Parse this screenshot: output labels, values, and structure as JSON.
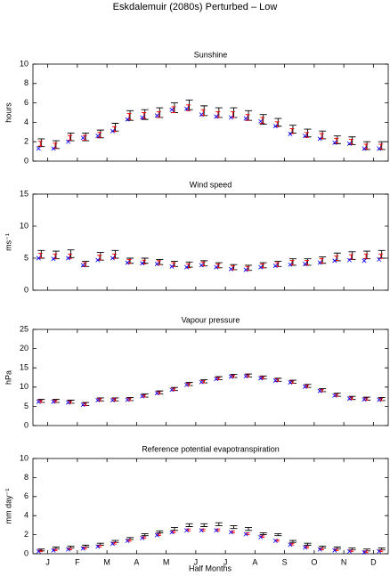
{
  "title": "Eskdalemuir (2080s) Perturbed – Low",
  "xlabel": "Half Months",
  "x": [
    1,
    2,
    3,
    4,
    5,
    6,
    7,
    8,
    9,
    10,
    11,
    12,
    13,
    14,
    15,
    16,
    17,
    18,
    19,
    20,
    21,
    22,
    23,
    24
  ],
  "xlim": [
    0.5,
    24.5
  ],
  "xticks": [
    {
      "value": 1.5,
      "label": "J"
    },
    {
      "value": 3.5,
      "label": "F"
    },
    {
      "value": 5.5,
      "label": "M"
    },
    {
      "value": 7.5,
      "label": "A"
    },
    {
      "value": 9.5,
      "label": "M"
    },
    {
      "value": 11.5,
      "label": "J"
    },
    {
      "value": 13.5,
      "label": "J"
    },
    {
      "value": 15.5,
      "label": "A"
    },
    {
      "value": 17.5,
      "label": "S"
    },
    {
      "value": 19.5,
      "label": "O"
    },
    {
      "value": 21.5,
      "label": "N"
    },
    {
      "value": 23.5,
      "label": "D"
    }
  ],
  "chart_data": [
    {
      "type": "errorbar",
      "title": "Sunshine",
      "ylabel": "hours",
      "ylim": [
        0,
        10
      ],
      "yticks": [
        0,
        2,
        4,
        6,
        8,
        10
      ],
      "series": [
        {
          "color": "#000000",
          "values": [
            1.9,
            1.7,
            2.5,
            2.5,
            2.8,
            3.5,
            4.7,
            4.8,
            5.0,
            5.5,
            5.8,
            5.2,
            5.0,
            5.0,
            4.7,
            4.3,
            4.0,
            3.3,
            2.9,
            2.7,
            2.2,
            2.1,
            1.6,
            1.6
          ],
          "errors": [
            0.4,
            0.4,
            0.4,
            0.4,
            0.4,
            0.4,
            0.5,
            0.5,
            0.5,
            0.5,
            0.5,
            0.5,
            0.5,
            0.5,
            0.5,
            0.5,
            0.4,
            0.4,
            0.4,
            0.4,
            0.4,
            0.4,
            0.4,
            0.4
          ]
        },
        {
          "color": "#ff0000",
          "values": [
            1.8,
            1.6,
            2.4,
            2.4,
            2.7,
            3.3,
            4.6,
            4.7,
            4.8,
            5.3,
            5.5,
            5.0,
            4.8,
            4.8,
            4.5,
            4.2,
            3.8,
            3.1,
            2.7,
            2.6,
            2.1,
            2.0,
            1.5,
            1.5
          ],
          "errors": [
            0.25,
            0.25,
            0.25,
            0.25,
            0.25,
            0.25,
            0.3,
            0.3,
            0.3,
            0.3,
            0.3,
            0.3,
            0.3,
            0.3,
            0.3,
            0.3,
            0.25,
            0.25,
            0.25,
            0.25,
            0.25,
            0.25,
            0.25,
            0.25
          ]
        },
        {
          "color": "#0000ff",
          "marker": "x",
          "values": [
            1.3,
            1.3,
            2.0,
            2.4,
            2.6,
            3.1,
            4.3,
            4.5,
            4.7,
            5.3,
            5.4,
            4.8,
            4.6,
            4.5,
            4.4,
            4.1,
            3.6,
            2.8,
            2.6,
            2.3,
            1.9,
            1.8,
            1.3,
            1.3
          ]
        }
      ]
    },
    {
      "type": "errorbar",
      "title": "Wind speed",
      "ylabel": "ms⁻¹",
      "ylim": [
        0,
        15
      ],
      "yticks": [
        0,
        5,
        10,
        15
      ],
      "series": [
        {
          "color": "#000000",
          "values": [
            5.6,
            5.5,
            5.7,
            4.1,
            5.3,
            5.6,
            4.6,
            4.6,
            4.4,
            4.1,
            4.0,
            4.2,
            3.9,
            3.6,
            3.5,
            3.9,
            4.1,
            4.4,
            4.4,
            4.7,
            5.2,
            5.4,
            5.5,
            5.6
          ],
          "errors": [
            0.6,
            0.6,
            0.6,
            0.4,
            0.6,
            0.6,
            0.4,
            0.4,
            0.4,
            0.4,
            0.4,
            0.4,
            0.4,
            0.4,
            0.4,
            0.4,
            0.4,
            0.5,
            0.5,
            0.5,
            0.6,
            0.6,
            0.6,
            0.6
          ]
        },
        {
          "color": "#ff0000",
          "values": [
            5.4,
            5.3,
            5.3,
            4.0,
            5.1,
            5.3,
            4.5,
            4.4,
            4.3,
            4.0,
            3.8,
            4.1,
            3.8,
            3.5,
            3.4,
            3.8,
            4.0,
            4.3,
            4.3,
            4.6,
            5.0,
            5.2,
            5.3,
            5.3
          ],
          "errors": [
            0.35,
            0.35,
            0.35,
            0.3,
            0.35,
            0.35,
            0.3,
            0.3,
            0.3,
            0.3,
            0.3,
            0.3,
            0.3,
            0.3,
            0.3,
            0.3,
            0.3,
            0.35,
            0.35,
            0.35,
            0.35,
            0.35,
            0.35,
            0.35
          ]
        },
        {
          "color": "#0000ff",
          "marker": "x",
          "values": [
            5.0,
            4.9,
            5.0,
            3.9,
            4.7,
            5.0,
            4.3,
            4.2,
            4.1,
            3.7,
            3.6,
            3.9,
            3.6,
            3.3,
            3.2,
            3.6,
            3.8,
            4.0,
            4.1,
            4.3,
            4.6,
            4.7,
            4.6,
            4.8
          ]
        }
      ]
    },
    {
      "type": "errorbar",
      "title": "Vapour pressure",
      "ylabel": "hPa",
      "ylim": [
        0,
        25
      ],
      "yticks": [
        0,
        5,
        10,
        15,
        20,
        25
      ],
      "series": [
        {
          "color": "#000000",
          "values": [
            6.4,
            6.4,
            6.2,
            5.6,
            6.8,
            6.8,
            6.9,
            7.8,
            8.6,
            9.5,
            10.8,
            11.5,
            12.3,
            12.9,
            13.0,
            12.5,
            11.9,
            11.4,
            10.3,
            9.2,
            8.0,
            7.2,
            7.0,
            6.9
          ],
          "errors": [
            0.4,
            0.4,
            0.4,
            0.4,
            0.4,
            0.4,
            0.4,
            0.4,
            0.4,
            0.4,
            0.4,
            0.4,
            0.4,
            0.4,
            0.4,
            0.4,
            0.4,
            0.4,
            0.4,
            0.4,
            0.4,
            0.4,
            0.4,
            0.4
          ]
        },
        {
          "color": "#ff0000",
          "values": [
            6.3,
            6.3,
            6.1,
            5.5,
            6.7,
            6.7,
            6.8,
            7.7,
            8.5,
            9.4,
            10.7,
            11.4,
            12.2,
            12.8,
            12.9,
            12.4,
            11.8,
            11.3,
            10.2,
            9.1,
            7.9,
            7.1,
            6.9,
            6.8
          ],
          "errors": [
            0.3,
            0.3,
            0.3,
            0.3,
            0.3,
            0.3,
            0.3,
            0.3,
            0.3,
            0.3,
            0.3,
            0.3,
            0.3,
            0.3,
            0.3,
            0.3,
            0.3,
            0.3,
            0.3,
            0.3,
            0.3,
            0.3,
            0.3,
            0.3
          ]
        },
        {
          "color": "#0000ff",
          "marker": "x",
          "values": [
            6.2,
            6.2,
            6.0,
            5.4,
            6.6,
            6.6,
            6.7,
            7.6,
            8.4,
            9.3,
            10.6,
            11.3,
            12.1,
            12.7,
            12.8,
            12.3,
            11.7,
            11.2,
            10.1,
            9.0,
            7.8,
            7.0,
            6.8,
            6.7
          ]
        }
      ]
    },
    {
      "type": "errorbar",
      "title": "Reference potential evapotranspiration",
      "ylabel": "mm day⁻¹",
      "ylim": [
        0,
        10
      ],
      "yticks": [
        0,
        2,
        4,
        6,
        8,
        10
      ],
      "series": [
        {
          "color": "#000000",
          "values": [
            0.4,
            0.6,
            0.7,
            0.8,
            1.0,
            1.3,
            1.6,
            2.0,
            2.3,
            2.6,
            3.0,
            3.0,
            3.1,
            2.8,
            2.6,
            2.1,
            2.0,
            1.3,
            1.0,
            0.7,
            0.6,
            0.5,
            0.4,
            0.5
          ],
          "errors": [
            0.1,
            0.1,
            0.1,
            0.1,
            0.1,
            0.1,
            0.1,
            0.1,
            0.1,
            0.15,
            0.15,
            0.15,
            0.15,
            0.15,
            0.15,
            0.1,
            0.1,
            0.1,
            0.1,
            0.1,
            0.1,
            0.1,
            0.1,
            0.1
          ]
        },
        {
          "color": "#ff0000",
          "values": [
            0.3,
            0.4,
            0.5,
            0.6,
            0.8,
            1.1,
            1.4,
            1.7,
            2.0,
            2.3,
            2.5,
            2.5,
            2.5,
            2.3,
            2.1,
            1.8,
            1.4,
            1.0,
            0.7,
            0.5,
            0.4,
            0.3,
            0.2,
            0.3
          ],
          "errors": [
            0.08,
            0.08,
            0.08,
            0.08,
            0.08,
            0.08,
            0.08,
            0.08,
            0.08,
            0.1,
            0.1,
            0.1,
            0.1,
            0.1,
            0.1,
            0.08,
            0.08,
            0.08,
            0.08,
            0.08,
            0.08,
            0.08,
            0.08,
            0.08
          ]
        },
        {
          "color": "#0000ff",
          "marker": "x",
          "values": [
            0.25,
            0.35,
            0.45,
            0.55,
            0.75,
            1.05,
            1.35,
            1.65,
            1.95,
            2.25,
            2.45,
            2.45,
            2.45,
            2.25,
            2.05,
            1.75,
            1.35,
            0.95,
            0.65,
            0.45,
            0.35,
            0.25,
            0.15,
            0.25
          ]
        }
      ]
    }
  ]
}
